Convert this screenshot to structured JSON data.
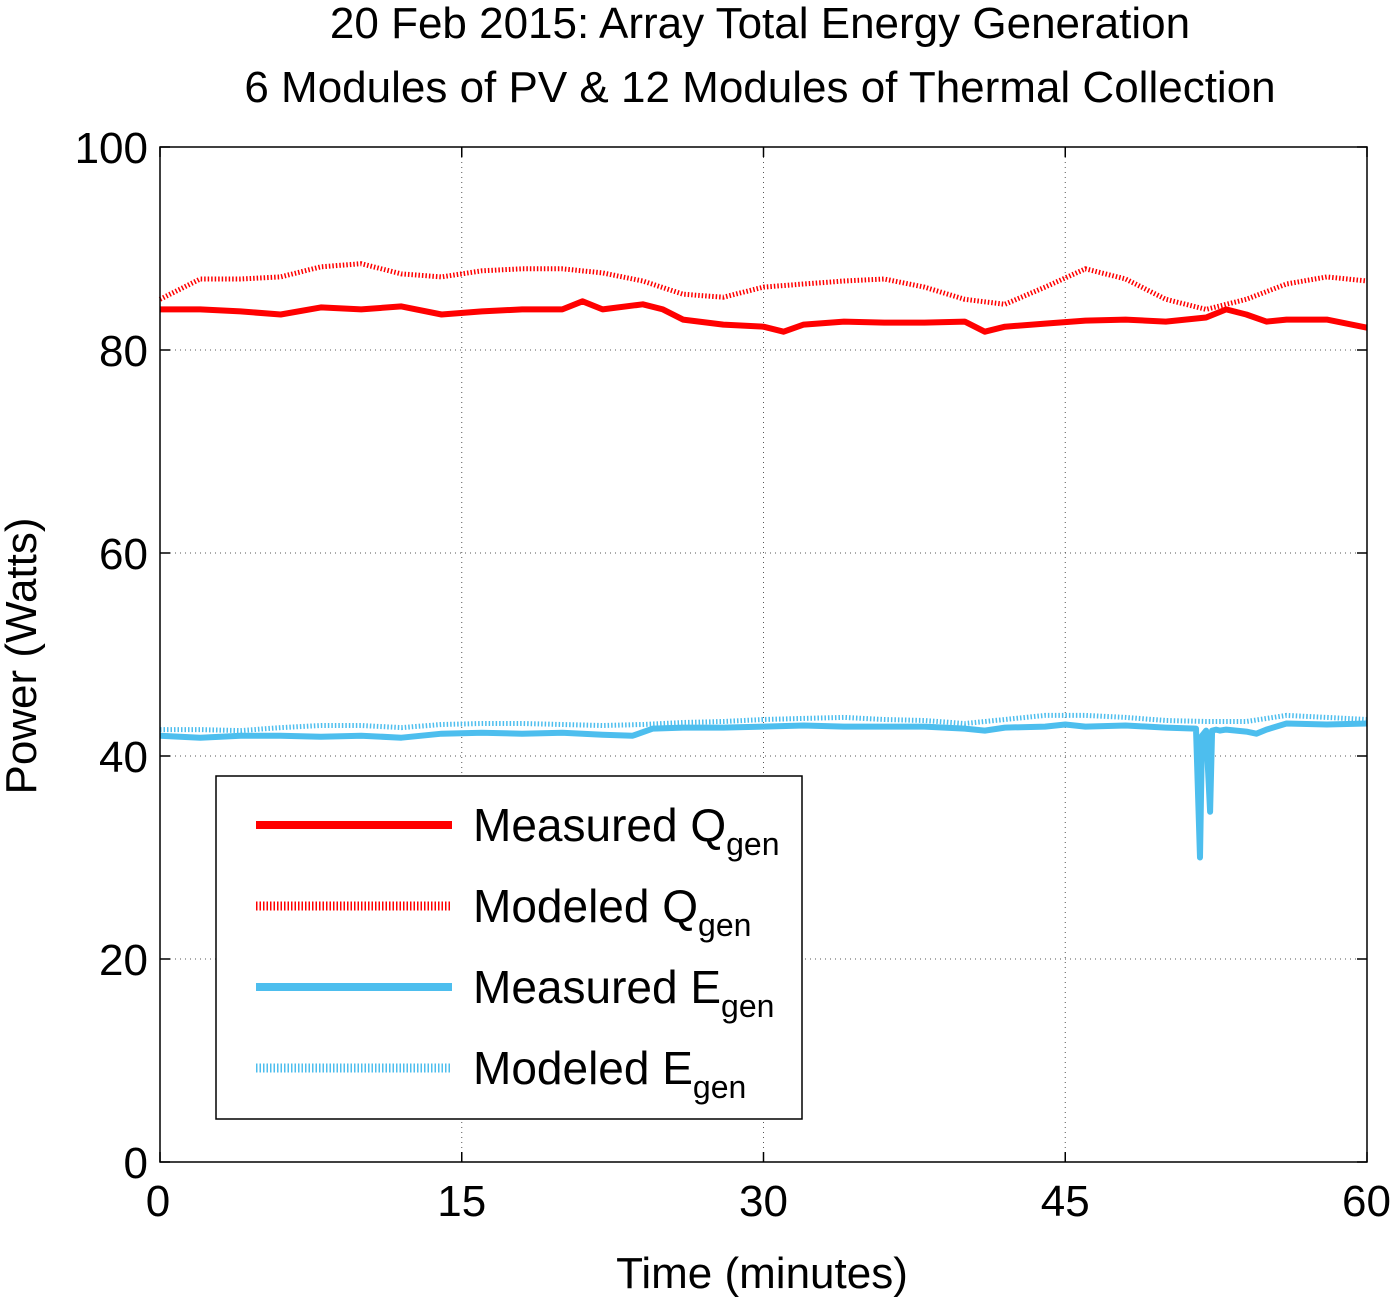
{
  "chart_data": {
    "type": "line",
    "title": "20 Feb 2015: Array Total Energy Generation",
    "subtitle": "6 Modules of PV & 12 Modules of Thermal Collection",
    "xlabel": "Time (minutes)",
    "ylabel": "Power (Watts)",
    "xlim": [
      0,
      60
    ],
    "ylim": [
      0,
      100
    ],
    "xticks": [
      0,
      15,
      30,
      45,
      60
    ],
    "yticks": [
      0,
      20,
      40,
      60,
      80,
      100
    ],
    "grid": true,
    "legend_position": "lower-left",
    "series": [
      {
        "name": "Measured Q",
        "name_sub": "gen",
        "color": "#ff0000",
        "style": "solid",
        "x": [
          0,
          2,
          4,
          6,
          8,
          10,
          12,
          14,
          16,
          18,
          20,
          21,
          22,
          24,
          25,
          26,
          28,
          30,
          31,
          32,
          34,
          36,
          38,
          40,
          41,
          42,
          44,
          46,
          48,
          50,
          52,
          53,
          54,
          55,
          56,
          58,
          60
        ],
        "y": [
          84.0,
          84.0,
          83.8,
          83.5,
          84.2,
          84.0,
          84.3,
          83.5,
          83.8,
          84.0,
          84.0,
          84.8,
          84.0,
          84.5,
          84.0,
          83.0,
          82.5,
          82.3,
          81.8,
          82.5,
          82.8,
          82.7,
          82.7,
          82.8,
          81.8,
          82.3,
          82.6,
          82.9,
          83.0,
          82.8,
          83.2,
          84.0,
          83.5,
          82.8,
          83.0,
          83.0,
          82.2
        ]
      },
      {
        "name": "Modeled Q",
        "name_sub": "gen",
        "color": "#ff0000",
        "style": "dotted",
        "x": [
          0,
          2,
          4,
          6,
          8,
          10,
          12,
          14,
          16,
          18,
          20,
          22,
          24,
          26,
          28,
          30,
          32,
          34,
          36,
          38,
          40,
          42,
          44,
          46,
          48,
          50,
          52,
          54,
          56,
          58,
          60
        ],
        "y": [
          85.0,
          87.0,
          87.0,
          87.2,
          88.2,
          88.5,
          87.5,
          87.2,
          87.8,
          88.0,
          88.0,
          87.6,
          86.8,
          85.5,
          85.2,
          86.2,
          86.5,
          86.8,
          87.0,
          86.2,
          85.0,
          84.5,
          86.2,
          88.0,
          87.0,
          85.0,
          84.0,
          85.0,
          86.5,
          87.2,
          86.8
        ]
      },
      {
        "name": "Measured E",
        "name_sub": "gen",
        "color": "#4dbeee",
        "style": "solid",
        "x": [
          0,
          2,
          4,
          6,
          8,
          10,
          12,
          14,
          16,
          18,
          20,
          22,
          23.5,
          24.5,
          26,
          28,
          30,
          32,
          34,
          36,
          38,
          40,
          41,
          42,
          44,
          45,
          46,
          48,
          50,
          51.5,
          51.7,
          51.8,
          52.0,
          52.2,
          52.3,
          52.5,
          52.7,
          53,
          54,
          54.5,
          55,
          56,
          58,
          60
        ],
        "y": [
          42.0,
          41.8,
          42.0,
          42.0,
          41.9,
          42.0,
          41.8,
          42.2,
          42.3,
          42.2,
          42.3,
          42.1,
          42.0,
          42.7,
          42.8,
          42.8,
          42.9,
          43.0,
          42.9,
          42.9,
          42.9,
          42.7,
          42.5,
          42.8,
          42.9,
          43.1,
          42.9,
          43.0,
          42.8,
          42.7,
          30.0,
          42.0,
          42.5,
          34.5,
          42.5,
          42.6,
          42.5,
          42.6,
          42.4,
          42.2,
          42.6,
          43.2,
          43.1,
          43.2
        ]
      },
      {
        "name": "Modeled E",
        "name_sub": "gen",
        "color": "#4dbeee",
        "style": "dotted",
        "x": [
          0,
          2,
          4,
          6,
          8,
          10,
          12,
          14,
          16,
          18,
          20,
          22,
          24,
          26,
          28,
          30,
          32,
          34,
          36,
          38,
          40,
          42,
          44,
          46,
          48,
          50,
          52,
          54,
          56,
          58,
          60
        ],
        "y": [
          42.6,
          42.6,
          42.5,
          42.8,
          43.0,
          43.0,
          42.8,
          43.1,
          43.2,
          43.2,
          43.1,
          43.0,
          43.1,
          43.3,
          43.4,
          43.6,
          43.7,
          43.8,
          43.6,
          43.5,
          43.2,
          43.6,
          44.0,
          44.0,
          43.8,
          43.5,
          43.4,
          43.4,
          44.0,
          43.8,
          43.6
        ]
      }
    ]
  }
}
